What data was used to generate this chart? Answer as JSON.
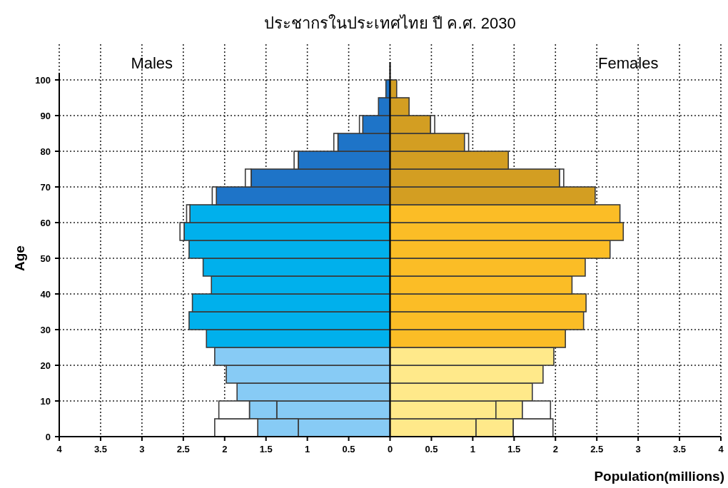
{
  "chart_data": {
    "type": "bar",
    "orientation": "horizontal",
    "title": "ประชากรในประเทศไทย ปี ค.ศ. 2030",
    "xlabel": "Population(millions)",
    "ylabel": "Age",
    "annotations": [
      "Males",
      "Females"
    ],
    "x": [
      2.5,
      7.5,
      12.5,
      17.5,
      22.5,
      27.5,
      32.5,
      37.5,
      42.5,
      47.5,
      52.5,
      57.5,
      62.5,
      67.5,
      72.5,
      77.5,
      82.5,
      87.5,
      92.5,
      97.5
    ],
    "stacked": true,
    "series": [
      {
        "colors": [
          "#87cbf5",
          "#87cbf5",
          "#87cbf5",
          "#87cbf5",
          "#87cbf5",
          "#00b0ec",
          "#00b0ec",
          "#00b0ec",
          "#00b0ec",
          "#00b0ec",
          "#00b0ec",
          "#00b0ec",
          "#00b0ec",
          "#1e74c8",
          "#1e74c8",
          "#1e74c8",
          "#1e74c8",
          "#1e74c8",
          "#1e74c8",
          "#1e74c8"
        ],
        "values": [
          -1.11,
          -1.37,
          -1.85,
          -1.98,
          -2.12,
          -2.22,
          -2.43,
          -2.39,
          -2.16,
          -2.26,
          -2.43,
          -2.49,
          -2.42,
          -2.1,
          -1.68,
          -1.11,
          -0.63,
          -0.33,
          -0.14,
          -0.05
        ]
      },
      {
        "color": "#87cbf5",
        "values": [
          -0.49,
          -0.33,
          null,
          null,
          null,
          null,
          null,
          null,
          null,
          null,
          null,
          null,
          null,
          null,
          null,
          null,
          null,
          null,
          null,
          null
        ]
      },
      {
        "color": "#ffffff",
        "values": [
          -0.52,
          -0.37,
          null,
          null,
          null,
          null,
          null,
          null,
          null,
          null,
          null,
          -0.05,
          -0.04,
          -0.05,
          -0.07,
          -0.05,
          -0.05,
          -0.04,
          null,
          null
        ]
      },
      {
        "colors": [
          "#ffe98a",
          "#ffe98a",
          "#ffe98a",
          "#ffe98a",
          "#ffe98a",
          "#fbbd26",
          "#fbbd26",
          "#fbbd26",
          "#fbbd26",
          "#fbbd26",
          "#fbbd26",
          "#fbbd26",
          "#fbbd26",
          "#d39e22",
          "#d39e22",
          "#d39e22",
          "#d39e22",
          "#d39e22",
          "#d39e22",
          "#d39e22"
        ],
        "values": [
          1.04,
          1.28,
          1.72,
          1.85,
          1.98,
          2.12,
          2.34,
          2.37,
          2.2,
          2.36,
          2.66,
          2.82,
          2.78,
          2.48,
          2.05,
          1.43,
          0.9,
          0.49,
          0.23,
          0.08
        ]
      },
      {
        "color": "#ffe98a",
        "values": [
          0.45,
          0.32,
          null,
          null,
          null,
          null,
          null,
          null,
          null,
          null,
          null,
          null,
          null,
          null,
          null,
          null,
          null,
          null,
          null,
          null
        ]
      },
      {
        "color": "#ffffff",
        "values": [
          0.48,
          0.34,
          null,
          null,
          null,
          null,
          null,
          null,
          null,
          null,
          null,
          null,
          null,
          null,
          0.05,
          null,
          0.05,
          0.05,
          null,
          null
        ]
      }
    ],
    "xlim": [
      -4,
      4
    ],
    "xticks": [
      {
        "value": -4,
        "label": "4"
      },
      {
        "value": -3.5,
        "label": "3.5"
      },
      {
        "value": -3,
        "label": "3"
      },
      {
        "value": -2.5,
        "label": "2.5"
      },
      {
        "value": -2,
        "label": "2"
      },
      {
        "value": -1.5,
        "label": "1.5"
      },
      {
        "value": -1,
        "label": "1"
      },
      {
        "value": -0.5,
        "label": "0.5"
      },
      0,
      0.5,
      1,
      1.5,
      2,
      2.5,
      3,
      3.5,
      4
    ],
    "ylim": [
      0,
      110
    ],
    "yticks": [
      0,
      10,
      20,
      30,
      40,
      50,
      60,
      70,
      80,
      90,
      100
    ],
    "ref_lines": [
      {
        "axis": "x",
        "value": 0,
        "color": "#000000"
      }
    ],
    "grid": true
  }
}
